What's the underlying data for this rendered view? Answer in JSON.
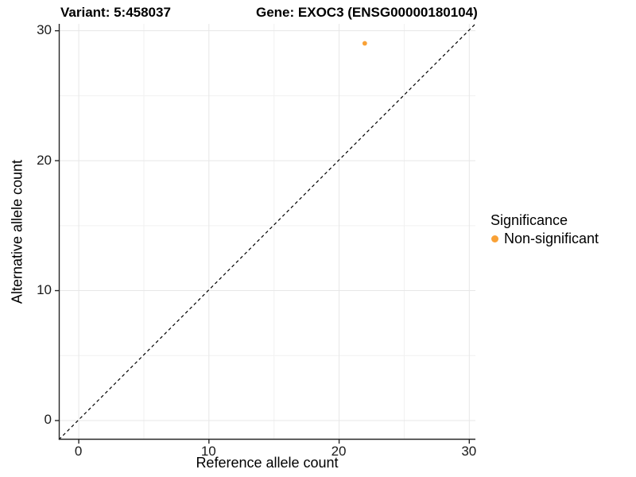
{
  "chart_data": {
    "type": "scatter",
    "titles": {
      "left": "Variant: 5:458037",
      "right": "Gene: EXOC3 (ENSG00000180104)"
    },
    "xlabel": "Reference allele count",
    "ylabel": "Alternative allele count",
    "xlim": [
      -1.5,
      30.5
    ],
    "ylim": [
      -1.5,
      30.5
    ],
    "xticks": [
      0,
      10,
      20,
      30
    ],
    "yticks": [
      0,
      10,
      20,
      30
    ],
    "minor_gridlines": [
      5,
      15,
      25
    ],
    "grid": "major and minor gridlines, no panel border, axis lines left and bottom",
    "points": [
      {
        "x": 22,
        "y": 29,
        "significance": "Non-significant"
      }
    ],
    "reference_line": {
      "description": "y = x identity line",
      "style": "dashed",
      "color": "#000000"
    },
    "legend": {
      "title": "Significance",
      "position": "right-middle",
      "items": [
        {
          "label": "Non-significant",
          "color": "#F9A136"
        }
      ]
    },
    "colors": {
      "point": "#F9A136",
      "grid_major": "#E7E7E7",
      "grid_minor": "#F1F1F1",
      "axis_line": "#262626",
      "tick_mark": "#262626",
      "tick_text": "#1a1a1a"
    }
  }
}
